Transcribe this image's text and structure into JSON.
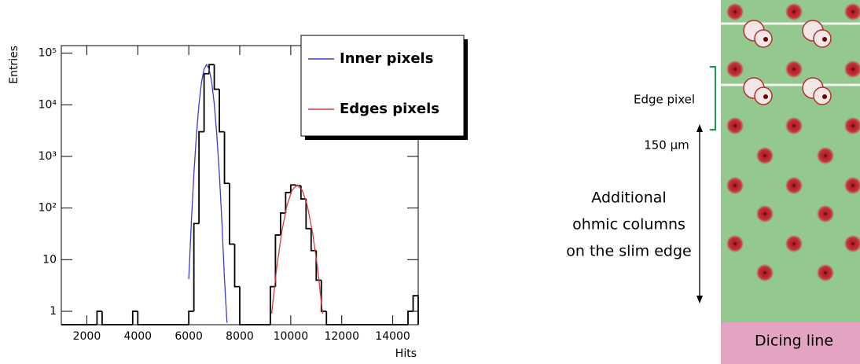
{
  "chart_data": {
    "type": "histogram",
    "xlabel": "Hits",
    "ylabel": "Entries",
    "bins": [
      1000,
      1200,
      1400,
      1600,
      1800,
      2000,
      2200,
      2400,
      2600,
      2800,
      3000,
      3200,
      3400,
      3600,
      3800,
      4000,
      4200,
      4400,
      4600,
      4800,
      5000,
      5200,
      5400,
      5600,
      5800,
      6000,
      6200,
      6400,
      6600,
      6800,
      7000,
      7200,
      7400,
      7600,
      7800,
      8000,
      8200,
      8400,
      8600,
      8800,
      9000,
      9200,
      9400,
      9600,
      9800,
      10000,
      10200,
      10400,
      10600,
      10800,
      11000,
      11200,
      11400,
      11600,
      11800,
      12000,
      12200,
      12400,
      12600,
      12800,
      13000,
      13200,
      13400,
      13600,
      13800,
      14000,
      14200,
      14400,
      14600,
      14800,
      15000
    ],
    "counts": [
      0,
      0,
      0,
      0,
      0,
      0,
      0,
      1,
      0,
      0,
      0,
      0,
      0,
      0,
      1,
      0,
      0,
      0,
      0,
      0,
      0,
      0,
      0,
      0,
      0,
      1,
      50,
      3000,
      40000,
      60000,
      20000,
      3000,
      300,
      20,
      3,
      0,
      0,
      0,
      0,
      0,
      0,
      3,
      30,
      80,
      200,
      280,
      270,
      150,
      40,
      15,
      4,
      1,
      0,
      0,
      0,
      0,
      0,
      0,
      0,
      0,
      0,
      0,
      0,
      0,
      0,
      0,
      0,
      0,
      1,
      2
    ],
    "color": "#000000",
    "series": [
      {
        "name": "Inner pixels",
        "color": "#3c3cc8",
        "x": [
          6000,
          6100,
          6200,
          6300,
          6400,
          6500,
          6600,
          6700,
          6800,
          6900,
          7000,
          7100,
          7200,
          7300,
          7400,
          7500
        ],
        "values": [
          4.2,
          53,
          455,
          2600,
          10300,
          27500,
          49000,
          60000,
          49000,
          27500,
          10300,
          2600,
          455,
          53,
          4.2,
          0.6
        ]
      },
      {
        "name": "Edges pixels",
        "color": "#d23c3c",
        "x": [
          9250,
          9450,
          9650,
          9850,
          10050,
          10250,
          10450,
          10650,
          10850,
          11050,
          11250
        ],
        "values": [
          0.9,
          7,
          35,
          111,
          222,
          280,
          222,
          111,
          35,
          7,
          0.9
        ]
      }
    ],
    "xlim": [
      1000,
      15000
    ],
    "xticks": [
      2000,
      4000,
      6000,
      8000,
      10000,
      12000,
      14000
    ],
    "ylim": [
      0.55,
      140000
    ],
    "log_y": true,
    "yticks": [
      1,
      10,
      {
        "value": 100,
        "label": "10²"
      },
      {
        "value": 1000,
        "label": "10³"
      },
      {
        "value": 10000,
        "label": "10⁴"
      },
      {
        "value": 100000,
        "label": "10⁵"
      }
    ],
    "legend": "upper right"
  },
  "figure": {
    "edge_pixel": "Edge pixel",
    "pitch": "150 µm",
    "ohmic": [
      "Additional",
      "ohmic columns",
      "on the slim edge"
    ],
    "dicing": "Dicing line"
  }
}
